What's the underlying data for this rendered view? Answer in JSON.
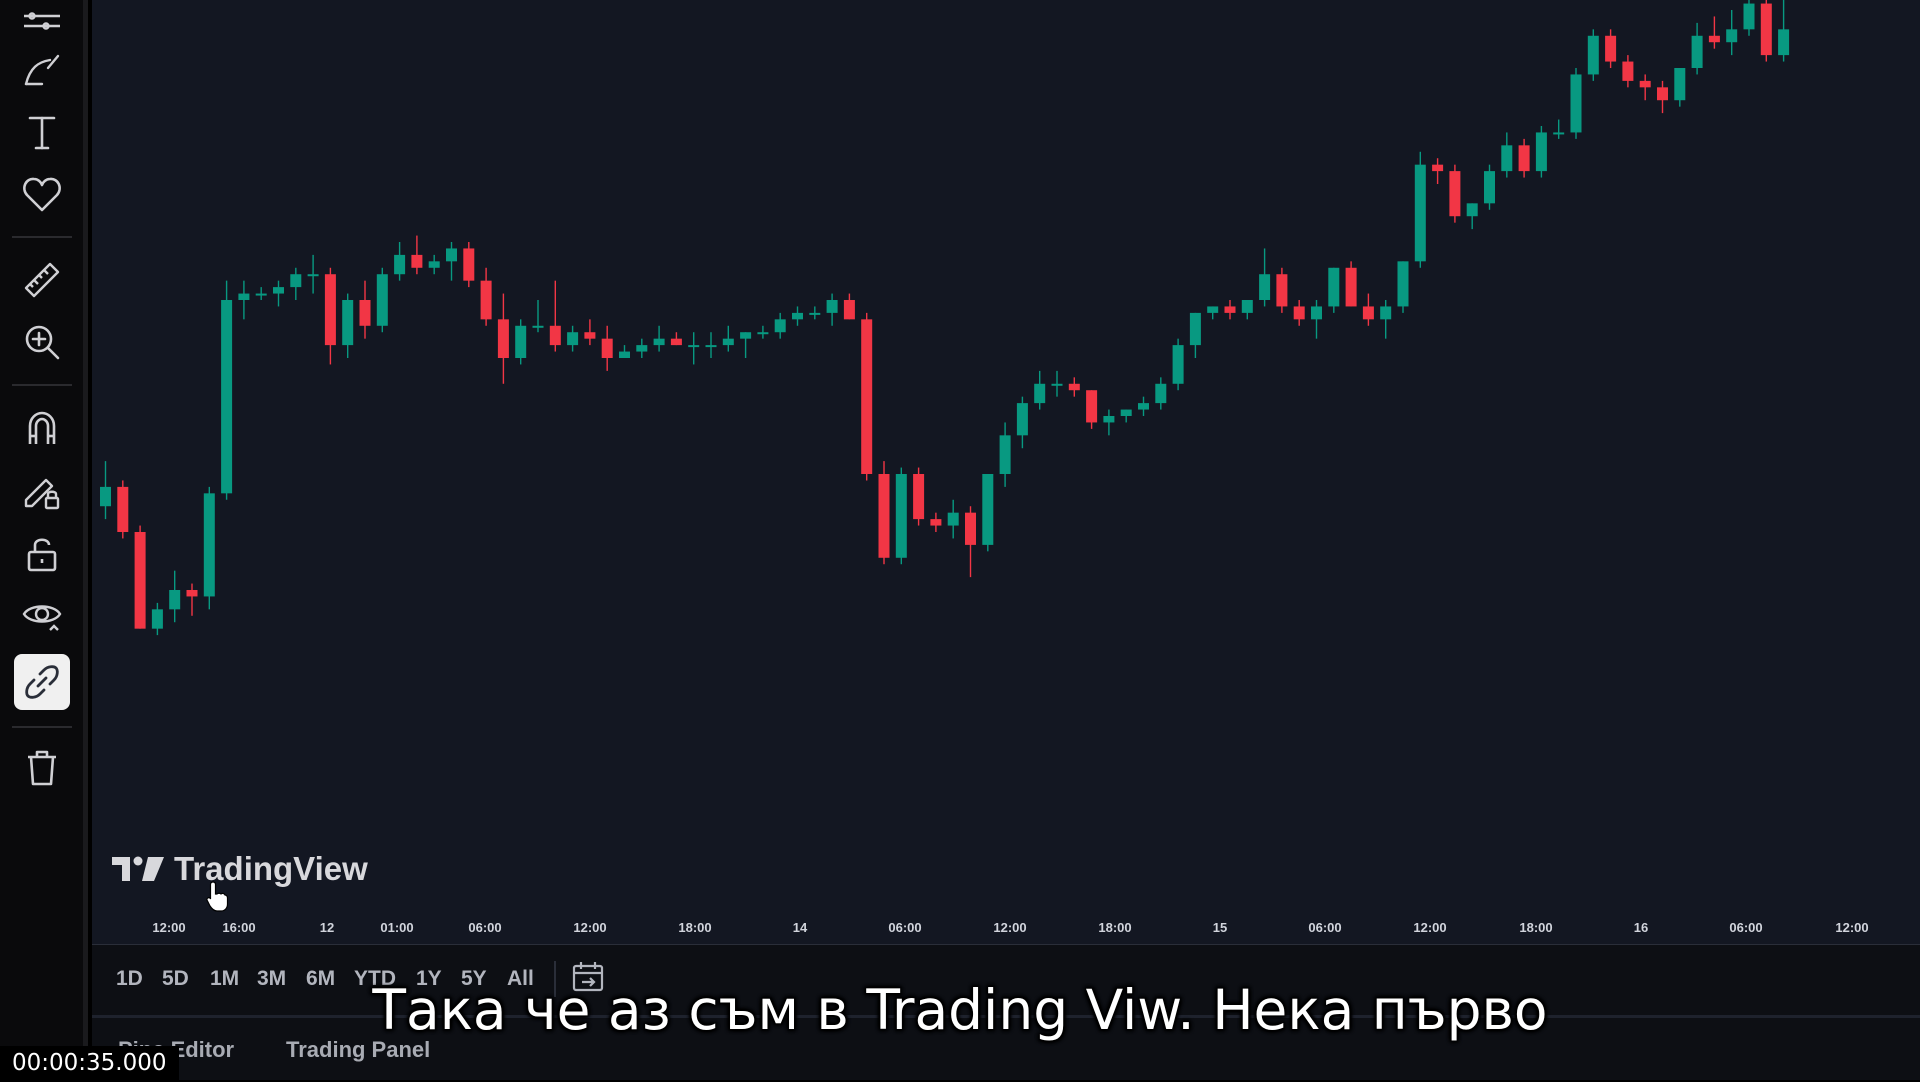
{
  "sidebar": {
    "tools": [
      {
        "name": "trend-line-tools-icon",
        "active": false
      },
      {
        "name": "brush-icon",
        "active": false
      },
      {
        "name": "text-icon",
        "active": false
      },
      {
        "name": "heart-icon",
        "active": false
      },
      {
        "name": "ruler-icon",
        "active": false
      },
      {
        "name": "zoom-in-icon",
        "active": false
      },
      {
        "name": "magnet-icon",
        "active": false
      },
      {
        "name": "lock-drawing-icon",
        "active": false
      },
      {
        "name": "unlock-icon",
        "active": false
      },
      {
        "name": "eye-icon",
        "active": false
      },
      {
        "name": "link-icon",
        "active": true
      },
      {
        "name": "trash-icon",
        "active": false
      }
    ]
  },
  "chart": {
    "logo_text": "TradingView",
    "up_color": "#089981",
    "down_color": "#f23645",
    "background": "#131722",
    "time_ticks": [
      "12:00",
      "16:00",
      "12",
      "01:00",
      "06:00",
      "12:00",
      "18:00",
      "14",
      "06:00",
      "12:00",
      "18:00",
      "15",
      "06:00",
      "12:00",
      "18:00",
      "16",
      "06:00",
      "12:00"
    ]
  },
  "chart_data": {
    "type": "candlestick",
    "title": "",
    "xlabel": "",
    "ylabel": "",
    "x_tick_labels": [
      "12:00",
      "16:00",
      "12",
      "01:00",
      "06:00",
      "12:00",
      "18:00",
      "14",
      "06:00",
      "12:00",
      "18:00",
      "15",
      "06:00",
      "12:00",
      "18:00",
      "16",
      "06:00",
      "12:00"
    ],
    "y_axis_visible": false,
    "grid": false,
    "candles": [
      {
        "o": 43,
        "h": 50,
        "l": 41,
        "c": 46
      },
      {
        "o": 46,
        "h": 47,
        "l": 38,
        "c": 39
      },
      {
        "o": 39,
        "h": 40,
        "l": 24,
        "c": 24
      },
      {
        "o": 24,
        "h": 28,
        "l": 23,
        "c": 27
      },
      {
        "o": 27,
        "h": 33,
        "l": 25,
        "c": 30
      },
      {
        "o": 30,
        "h": 31,
        "l": 26,
        "c": 29
      },
      {
        "o": 29,
        "h": 46,
        "l": 27,
        "c": 45
      },
      {
        "o": 45,
        "h": 78,
        "l": 44,
        "c": 75
      },
      {
        "o": 75,
        "h": 78,
        "l": 72,
        "c": 76
      },
      {
        "o": 76,
        "h": 77,
        "l": 75,
        "c": 76
      },
      {
        "o": 76,
        "h": 78,
        "l": 74,
        "c": 77
      },
      {
        "o": 77,
        "h": 80,
        "l": 75,
        "c": 79
      },
      {
        "o": 79,
        "h": 82,
        "l": 76,
        "c": 79
      },
      {
        "o": 79,
        "h": 80,
        "l": 65,
        "c": 68
      },
      {
        "o": 68,
        "h": 76,
        "l": 66,
        "c": 75
      },
      {
        "o": 75,
        "h": 78,
        "l": 69,
        "c": 71
      },
      {
        "o": 71,
        "h": 80,
        "l": 70,
        "c": 79
      },
      {
        "o": 79,
        "h": 84,
        "l": 78,
        "c": 82
      },
      {
        "o": 82,
        "h": 85,
        "l": 79,
        "c": 80
      },
      {
        "o": 80,
        "h": 82,
        "l": 79,
        "c": 81
      },
      {
        "o": 81,
        "h": 84,
        "l": 78,
        "c": 83
      },
      {
        "o": 83,
        "h": 84,
        "l": 77,
        "c": 78
      },
      {
        "o": 78,
        "h": 80,
        "l": 71,
        "c": 72
      },
      {
        "o": 72,
        "h": 76,
        "l": 62,
        "c": 66
      },
      {
        "o": 66,
        "h": 72,
        "l": 65,
        "c": 71
      },
      {
        "o": 71,
        "h": 75,
        "l": 70,
        "c": 71
      },
      {
        "o": 71,
        "h": 78,
        "l": 67,
        "c": 68
      },
      {
        "o": 68,
        "h": 71,
        "l": 67,
        "c": 70
      },
      {
        "o": 70,
        "h": 72,
        "l": 68,
        "c": 69
      },
      {
        "o": 69,
        "h": 71,
        "l": 64,
        "c": 66
      },
      {
        "o": 66,
        "h": 68,
        "l": 66,
        "c": 67
      },
      {
        "o": 67,
        "h": 69,
        "l": 66,
        "c": 68
      },
      {
        "o": 68,
        "h": 71,
        "l": 67,
        "c": 69
      },
      {
        "o": 69,
        "h": 70,
        "l": 68,
        "c": 68
      },
      {
        "o": 68,
        "h": 70,
        "l": 65,
        "c": 68
      },
      {
        "o": 68,
        "h": 70,
        "l": 66,
        "c": 68
      },
      {
        "o": 68,
        "h": 71,
        "l": 67,
        "c": 69
      },
      {
        "o": 69,
        "h": 70,
        "l": 66,
        "c": 70
      },
      {
        "o": 70,
        "h": 71,
        "l": 69,
        "c": 70
      },
      {
        "o": 70,
        "h": 73,
        "l": 69,
        "c": 72
      },
      {
        "o": 72,
        "h": 74,
        "l": 71,
        "c": 73
      },
      {
        "o": 73,
        "h": 74,
        "l": 72,
        "c": 73
      },
      {
        "o": 73,
        "h": 76,
        "l": 71,
        "c": 75
      },
      {
        "o": 75,
        "h": 76,
        "l": 72,
        "c": 72
      },
      {
        "o": 72,
        "h": 73,
        "l": 47,
        "c": 48
      },
      {
        "o": 48,
        "h": 50,
        "l": 34,
        "c": 35
      },
      {
        "o": 35,
        "h": 49,
        "l": 34,
        "c": 48
      },
      {
        "o": 48,
        "h": 49,
        "l": 40,
        "c": 41
      },
      {
        "o": 41,
        "h": 42,
        "l": 39,
        "c": 40
      },
      {
        "o": 40,
        "h": 44,
        "l": 38,
        "c": 42
      },
      {
        "o": 42,
        "h": 43,
        "l": 32,
        "c": 37
      },
      {
        "o": 37,
        "h": 48,
        "l": 36,
        "c": 48
      },
      {
        "o": 48,
        "h": 56,
        "l": 46,
        "c": 54
      },
      {
        "o": 54,
        "h": 60,
        "l": 52,
        "c": 59
      },
      {
        "o": 59,
        "h": 64,
        "l": 58,
        "c": 62
      },
      {
        "o": 62,
        "h": 64,
        "l": 60,
        "c": 62
      },
      {
        "o": 62,
        "h": 63,
        "l": 60,
        "c": 61
      },
      {
        "o": 61,
        "h": 61,
        "l": 55,
        "c": 56
      },
      {
        "o": 56,
        "h": 58,
        "l": 54,
        "c": 57
      },
      {
        "o": 57,
        "h": 58,
        "l": 56,
        "c": 58
      },
      {
        "o": 58,
        "h": 60,
        "l": 57,
        "c": 59
      },
      {
        "o": 59,
        "h": 63,
        "l": 58,
        "c": 62
      },
      {
        "o": 62,
        "h": 69,
        "l": 61,
        "c": 68
      },
      {
        "o": 68,
        "h": 73,
        "l": 66,
        "c": 73
      },
      {
        "o": 73,
        "h": 74,
        "l": 72,
        "c": 74
      },
      {
        "o": 74,
        "h": 75,
        "l": 72,
        "c": 73
      },
      {
        "o": 73,
        "h": 75,
        "l": 72,
        "c": 75
      },
      {
        "o": 75,
        "h": 83,
        "l": 74,
        "c": 79
      },
      {
        "o": 79,
        "h": 80,
        "l": 73,
        "c": 74
      },
      {
        "o": 74,
        "h": 75,
        "l": 71,
        "c": 72
      },
      {
        "o": 72,
        "h": 75,
        "l": 69,
        "c": 74
      },
      {
        "o": 74,
        "h": 80,
        "l": 73,
        "c": 80
      },
      {
        "o": 80,
        "h": 81,
        "l": 74,
        "c": 74
      },
      {
        "o": 74,
        "h": 76,
        "l": 71,
        "c": 72
      },
      {
        "o": 72,
        "h": 75,
        "l": 69,
        "c": 74
      },
      {
        "o": 74,
        "h": 81,
        "l": 73,
        "c": 81
      },
      {
        "o": 81,
        "h": 98,
        "l": 80,
        "c": 96
      },
      {
        "o": 96,
        "h": 97,
        "l": 93,
        "c": 95
      },
      {
        "o": 95,
        "h": 96,
        "l": 87,
        "c": 88
      },
      {
        "o": 88,
        "h": 90,
        "l": 86,
        "c": 90
      },
      {
        "o": 90,
        "h": 96,
        "l": 89,
        "c": 95
      },
      {
        "o": 95,
        "h": 101,
        "l": 94,
        "c": 99
      },
      {
        "o": 99,
        "h": 100,
        "l": 94,
        "c": 95
      },
      {
        "o": 95,
        "h": 102,
        "l": 94,
        "c": 101
      },
      {
        "o": 101,
        "h": 103,
        "l": 100,
        "c": 101
      },
      {
        "o": 101,
        "h": 111,
        "l": 100,
        "c": 110
      },
      {
        "o": 110,
        "h": 117,
        "l": 109,
        "c": 116
      },
      {
        "o": 116,
        "h": 117,
        "l": 111,
        "c": 112
      },
      {
        "o": 112,
        "h": 113,
        "l": 108,
        "c": 109
      },
      {
        "o": 109,
        "h": 110,
        "l": 106,
        "c": 108
      },
      {
        "o": 108,
        "h": 109,
        "l": 104,
        "c": 106
      },
      {
        "o": 106,
        "h": 111,
        "l": 105,
        "c": 111
      },
      {
        "o": 111,
        "h": 118,
        "l": 110,
        "c": 116
      },
      {
        "o": 116,
        "h": 119,
        "l": 114,
        "c": 115
      },
      {
        "o": 115,
        "h": 120,
        "l": 113,
        "c": 117
      },
      {
        "o": 117,
        "h": 123,
        "l": 116,
        "c": 121
      },
      {
        "o": 121,
        "h": 123,
        "l": 112,
        "c": 113
      },
      {
        "o": 113,
        "h": 123,
        "l": 112,
        "c": 117
      }
    ]
  },
  "ranges": [
    "1D",
    "5D",
    "1M",
    "3M",
    "6M",
    "YTD",
    "1Y",
    "5Y",
    "All"
  ],
  "bottom_panel": {
    "tab_pine": "Pine Editor",
    "tab_trading": "Trading Panel"
  },
  "overlay": {
    "subtitle": "Така че аз съм в Trading Viw. Нека първо",
    "timestamp": "00:00:35.000"
  }
}
